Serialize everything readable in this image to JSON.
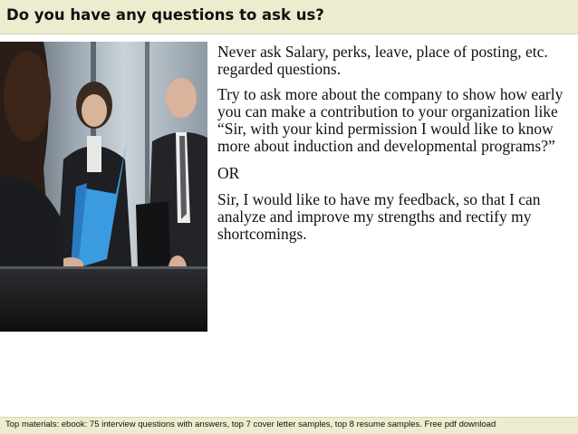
{
  "slide": {
    "title": "Do you have any questions to ask us?",
    "paragraphs": [
      "Never ask Salary, perks, leave, place of posting, etc. regarded questions.",
      "Try to ask more about the company to show how early you can make a contribution to your organization like",
      "“Sir, with your kind permission I would like to know more about induction and developmental programs?”",
      "OR",
      "Sir, I would like to have my feedback, so that I can analyze and improve my strengths and rectify my shortcomings."
    ],
    "footer": "Top materials: ebook: 75 interview questions with answers, top 7 cover letter samples, top 8 resume samples. Free pdf download"
  },
  "colors": {
    "header_bg": "#eeeccf",
    "footer_bg": "#eeeccf",
    "text": "#111111",
    "folder_blue": "#3b9be0"
  }
}
